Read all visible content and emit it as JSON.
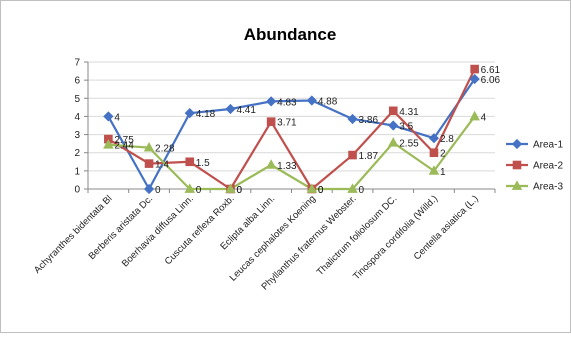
{
  "chart_data": {
    "type": "line",
    "title": "Abundance",
    "xlabel": "",
    "ylabel": "",
    "ylim": [
      0,
      7
    ],
    "yticks": [
      0,
      1,
      2,
      3,
      4,
      5,
      6,
      7
    ],
    "grid": "horizontal",
    "legend": "right",
    "categories": [
      "Achyranthes bidentata Bl",
      "Berberis aristata Dc.",
      "Boerhavia diffusa Linn.",
      "Cuscuta reflexa Roxb.",
      "Eclipta alba Linn.",
      "Leucas cephalotes Koening",
      "Phyllanthus fraternus Webster.",
      "Thalictrum foliolosum  DC.",
      "Tinospora cordifolia (Willd.)",
      "Centella asiatica (L.)"
    ],
    "series": [
      {
        "name": "Area-1",
        "color": "#4572c4",
        "marker": "diamond",
        "values": [
          4,
          0,
          4.18,
          4.41,
          4.83,
          4.88,
          3.86,
          3.5,
          2.8,
          6.06
        ],
        "labels": [
          "4",
          "0",
          "4.18",
          "4.41",
          "4.83",
          "4.88",
          "3.86",
          "3.5",
          "2.8",
          "6.06"
        ]
      },
      {
        "name": "Area-2",
        "color": "#c0504d",
        "marker": "square",
        "values": [
          2.75,
          1.4,
          1.5,
          0,
          3.71,
          0,
          1.87,
          4.31,
          2,
          6.61
        ],
        "labels": [
          "2.75",
          "1.4",
          "1.5",
          "0",
          "3.71",
          "0",
          "1.87",
          "4.31",
          "2",
          "6.61"
        ]
      },
      {
        "name": "Area-3",
        "color": "#9bbb59",
        "marker": "triangle",
        "values": [
          2.44,
          2.28,
          0,
          0,
          1.33,
          0,
          0,
          2.55,
          1,
          4
        ],
        "labels": [
          "2.44",
          "2.28",
          "0",
          "0",
          "1.33",
          "0",
          "0",
          "2.55",
          "1",
          "4"
        ]
      }
    ]
  }
}
